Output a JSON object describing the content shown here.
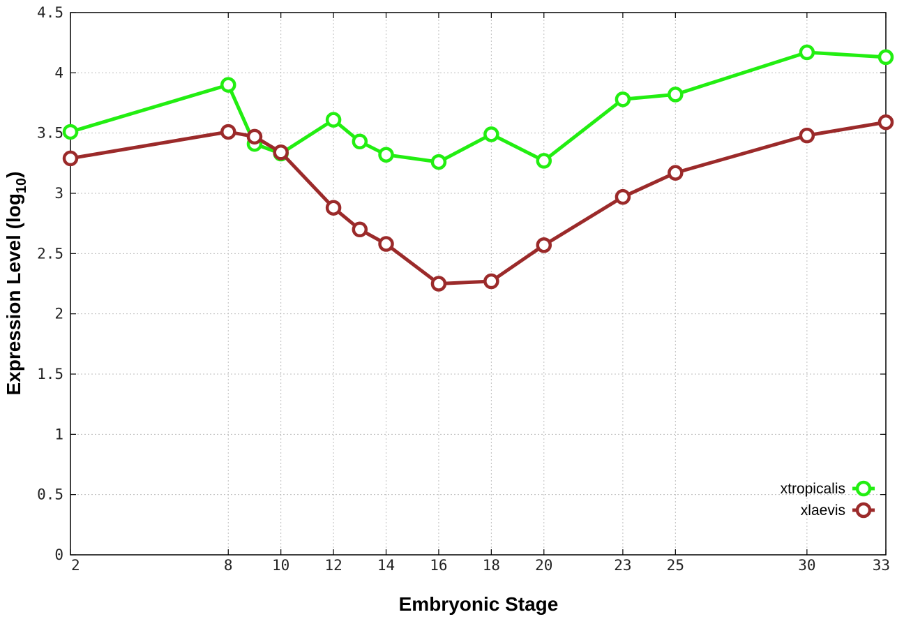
{
  "chart_data": {
    "type": "line",
    "title": "",
    "xlabel": "Embryonic Stage",
    "ylabel": {
      "prefix": "Expression Level (log",
      "sub": "10",
      "suffix": ")"
    },
    "xlim": [
      2,
      33
    ],
    "ylim": [
      0,
      4.5
    ],
    "x_ticks": [
      2,
      8,
      10,
      12,
      14,
      16,
      18,
      20,
      23,
      25,
      30,
      33
    ],
    "y_ticks": [
      {
        "value": 0,
        "label": "0"
      },
      {
        "value": 0.5,
        "label": "0.5"
      },
      {
        "value": 1,
        "label": "1"
      },
      {
        "value": 1.5,
        "label": "1.5"
      },
      {
        "value": 2,
        "label": "2"
      },
      {
        "value": 2.5,
        "label": "2.5"
      },
      {
        "value": 3,
        "label": "3"
      },
      {
        "value": 3.5,
        "label": "3.5"
      },
      {
        "value": 4,
        "label": "4"
      },
      {
        "value": 4.5,
        "label": "4.5"
      }
    ],
    "grid": true,
    "legend_position": "bottom-right",
    "series": [
      {
        "name": "xtropicalis",
        "color": "#22ee11",
        "x": [
          2,
          8,
          9,
          10,
          12,
          13,
          14,
          16,
          18,
          20,
          23,
          25,
          30,
          33
        ],
        "y": [
          3.51,
          3.9,
          3.41,
          3.33,
          3.61,
          3.43,
          3.32,
          3.26,
          3.49,
          3.27,
          3.78,
          3.82,
          4.17,
          4.13
        ]
      },
      {
        "name": "xlaevis",
        "color": "#9b2a2a",
        "x": [
          2,
          8,
          9,
          10,
          12,
          13,
          14,
          16,
          18,
          20,
          23,
          25,
          30,
          33
        ],
        "y": [
          3.29,
          3.51,
          3.47,
          3.34,
          2.88,
          2.7,
          2.58,
          2.25,
          2.27,
          2.57,
          2.97,
          3.17,
          3.48,
          3.59
        ]
      }
    ]
  }
}
